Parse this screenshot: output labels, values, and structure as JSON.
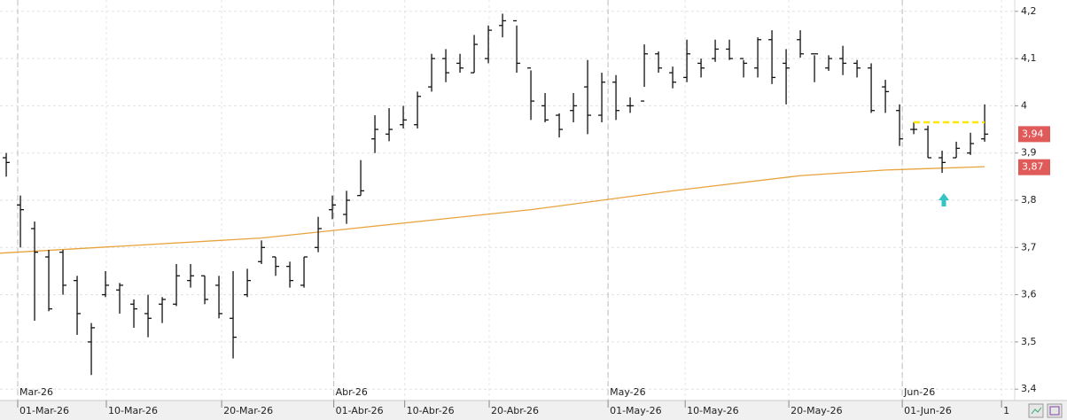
{
  "chart_data": {
    "type": "ohlc",
    "color": "#111111",
    "xlim": [
      -0.44,
      71.12
    ],
    "ylim": [
      3.376,
      4.224
    ],
    "yticks": [
      {
        "value": 3.4,
        "label": "3,4"
      },
      {
        "value": 3.5,
        "label": "3,5"
      },
      {
        "value": 3.6,
        "label": "3,6"
      },
      {
        "value": 3.7,
        "label": "3,7"
      },
      {
        "value": 3.8,
        "label": "3,8"
      },
      {
        "value": 3.9,
        "label": "3,9"
      },
      {
        "value": 4.0,
        "label": "4"
      },
      {
        "value": 4.1,
        "label": "4,1"
      },
      {
        "value": 4.2,
        "label": "4,2"
      }
    ],
    "xticks": [
      {
        "value": 0.81,
        "label": "01-Mar-26"
      },
      {
        "value": 7.06,
        "label": "10-Mar-26"
      },
      {
        "value": 15.19,
        "label": "20-Mar-26"
      },
      {
        "value": 23.1,
        "label": "01-Abr-26"
      },
      {
        "value": 28.1,
        "label": "10-Abr-26"
      },
      {
        "value": 34.06,
        "label": "20-Abr-26"
      },
      {
        "value": 42.44,
        "label": "01-May-26"
      },
      {
        "value": 47.88,
        "label": "10-May-26"
      },
      {
        "value": 55.19,
        "label": "20-May-26"
      },
      {
        "value": 63.19,
        "label": "01-Jun-26"
      },
      {
        "value": 70.19,
        "label": "1"
      }
    ],
    "month_ticks": [
      {
        "value": 0.81,
        "label": "Mar-26"
      },
      {
        "value": 23.1,
        "label": "Abr-26"
      },
      {
        "value": 42.44,
        "label": "May-26"
      },
      {
        "value": 63.19,
        "label": "Jun-26"
      }
    ],
    "grid": true,
    "ohlc": {
      "open": [
        3.89,
        3.79,
        3.74,
        3.68,
        3.69,
        3.63,
        3.5,
        3.6,
        3.61,
        3.58,
        3.56,
        3.58,
        3.58,
        3.63,
        3.64,
        3.62,
        3.55,
        3.6,
        3.67,
        3.68,
        3.66,
        3.62,
        3.7,
        3.78,
        3.77,
        3.81,
        3.93,
        3.94,
        3.96,
        3.96,
        4.04,
        4.1,
        4.09,
        4.07,
        4.1,
        4.17,
        4.18,
        4.08,
        4.0,
        3.98,
        3.99,
        4.04,
        3.98,
        4.05,
        4.0,
        4.01,
        4.11,
        4.07,
        4.06,
        4.09,
        4.1,
        4.12,
        4.1,
        4.08,
        4.14,
        4.09,
        4.14,
        4.11,
        4.08,
        4.1,
        4.09,
        4.08,
        4.04,
        3.99,
        3.95,
        3.95,
        3.89,
        3.89,
        3.9,
        3.93
      ],
      "high": [
        3.9,
        3.81,
        3.755,
        3.695,
        3.695,
        3.64,
        3.54,
        3.65,
        3.625,
        3.59,
        3.6,
        3.595,
        3.665,
        3.665,
        3.64,
        3.64,
        3.65,
        3.655,
        3.715,
        3.68,
        3.67,
        3.68,
        3.765,
        3.81,
        3.82,
        3.885,
        3.98,
        3.995,
        4.0,
        4.03,
        4.11,
        4.12,
        4.11,
        4.15,
        4.17,
        4.195,
        4.17,
        4.075,
        4.027,
        3.984,
        4.027,
        4.097,
        4.07,
        4.065,
        4.018,
        4.13,
        4.115,
        4.083,
        4.14,
        4.1,
        4.14,
        4.14,
        4.097,
        4.145,
        4.16,
        4.12,
        4.16,
        4.107,
        4.107,
        4.127,
        4.097,
        4.09,
        4.055,
        4.003,
        3.965,
        3.958,
        3.905,
        3.924,
        3.943,
        4.003
      ],
      "low": [
        3.85,
        3.7,
        3.545,
        3.565,
        3.6,
        3.515,
        3.43,
        3.595,
        3.56,
        3.53,
        3.51,
        3.54,
        3.576,
        3.615,
        3.58,
        3.55,
        3.465,
        3.595,
        3.665,
        3.64,
        3.615,
        3.615,
        3.69,
        3.76,
        3.75,
        3.81,
        3.9,
        3.925,
        3.952,
        3.952,
        4.03,
        4.05,
        4.07,
        4.07,
        4.09,
        4.145,
        4.07,
        3.97,
        3.965,
        3.933,
        3.965,
        3.94,
        3.965,
        3.97,
        3.985,
        4.04,
        4.07,
        4.037,
        4.05,
        4.06,
        4.093,
        4.097,
        4.06,
        4.06,
        4.046,
        4.003,
        4.102,
        4.05,
        4.074,
        4.065,
        4.06,
        3.985,
        3.985,
        3.915,
        3.94,
        3.89,
        3.858,
        3.89,
        3.896,
        3.924
      ],
      "close": [
        3.88,
        3.78,
        3.69,
        3.57,
        3.62,
        3.56,
        3.53,
        3.62,
        3.62,
        3.57,
        3.55,
        3.59,
        3.64,
        3.64,
        3.59,
        3.56,
        3.51,
        3.63,
        3.7,
        3.66,
        3.63,
        3.68,
        3.74,
        3.79,
        3.8,
        3.82,
        3.95,
        3.95,
        3.97,
        4.02,
        4.1,
        4.07,
        4.08,
        4.13,
        4.16,
        4.18,
        4.09,
        4.01,
        3.97,
        3.95,
        4.0,
        3.98,
        4.05,
        3.99,
        4.0,
        4.11,
        4.08,
        4.05,
        4.11,
        4.08,
        4.12,
        4.1,
        4.09,
        4.14,
        4.06,
        4.08,
        4.11,
        4.11,
        4.1,
        4.09,
        4.08,
        3.99,
        4.03,
        3.93,
        3.95,
        3.89,
        3.88,
        3.91,
        3.92,
        3.94
      ]
    },
    "ma": {
      "color": "#e8a33c",
      "x": [
        -0.44,
        18,
        37,
        47,
        56,
        62,
        69
      ],
      "values": [
        3.688,
        3.72,
        3.78,
        3.82,
        3.852,
        3.864,
        3.871
      ]
    },
    "level": {
      "color": "#ffe600",
      "value": 3.965,
      "x": [
        64,
        69
      ]
    },
    "price_labels": [
      {
        "value": 3.94,
        "label": "3,94",
        "color": "#e05a5a"
      },
      {
        "value": 3.87,
        "label": "3,87",
        "color": "#e05a5a"
      }
    ]
  }
}
